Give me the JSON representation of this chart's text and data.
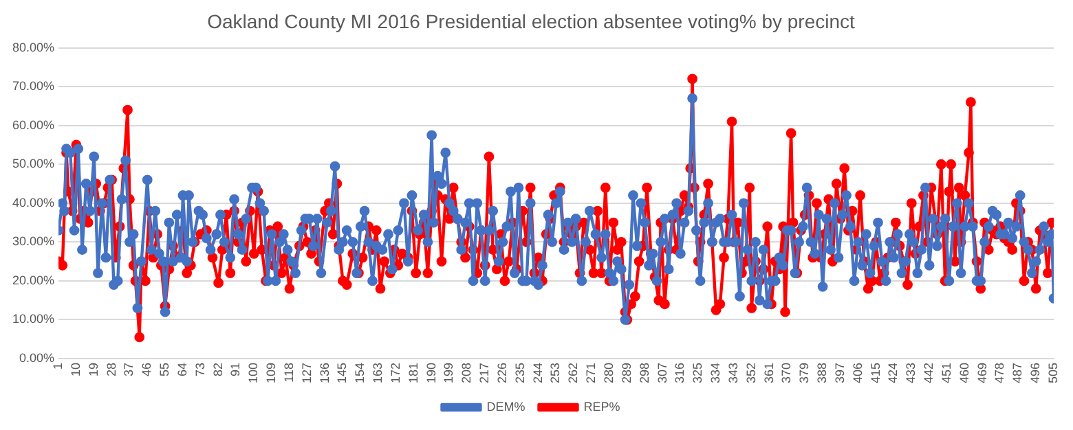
{
  "chart_data": {
    "type": "line",
    "title": "Oakland County MI 2016 Presidential election absentee voting% by precinct",
    "xlim": [
      1,
      505
    ],
    "xticks": [
      1,
      10,
      19,
      28,
      37,
      46,
      55,
      64,
      73,
      82,
      91,
      100,
      109,
      118,
      127,
      136,
      145,
      154,
      163,
      172,
      181,
      190,
      199,
      208,
      217,
      226,
      235,
      244,
      253,
      262,
      271,
      280,
      289,
      298,
      307,
      316,
      325,
      334,
      343,
      352,
      361,
      370,
      379,
      388,
      397,
      406,
      415,
      424,
      433,
      442,
      451,
      460,
      469,
      478,
      487,
      496,
      505
    ],
    "ylim": [
      0,
      80
    ],
    "yticks": [
      {
        "value": 0,
        "label": "0.00%"
      },
      {
        "value": 10,
        "label": "10.00%"
      },
      {
        "value": 20,
        "label": "20.00%"
      },
      {
        "value": 30,
        "label": "30.00%"
      },
      {
        "value": 40,
        "label": "40.00%"
      },
      {
        "value": 50,
        "label": "50.00%"
      },
      {
        "value": 60,
        "label": "60.00%"
      },
      {
        "value": 70,
        "label": "70.00%"
      },
      {
        "value": 80,
        "label": "80.00%"
      }
    ],
    "grid": "y",
    "legend": "bottom",
    "marker": "circle",
    "line_style": "solid",
    "series": [
      {
        "name": "DEM%",
        "color": "#4472c4",
        "x": [
          1,
          3,
          4,
          5,
          7,
          9,
          11,
          13,
          15,
          17,
          19,
          21,
          23,
          25,
          27,
          29,
          31,
          33,
          35,
          37,
          39,
          41,
          43,
          46,
          48,
          50,
          52,
          54,
          55,
          57,
          59,
          61,
          63,
          64,
          66,
          67,
          69,
          72,
          74,
          76,
          78,
          81,
          83,
          85,
          88,
          90,
          92,
          94,
          96,
          99,
          101,
          103,
          105,
          107,
          109,
          111,
          113,
          115,
          117,
          119,
          121,
          124,
          126,
          128,
          130,
          132,
          134,
          137,
          139,
          141,
          143,
          145,
          147,
          150,
          152,
          154,
          156,
          158,
          160,
          162,
          165,
          168,
          170,
          173,
          176,
          178,
          180,
          183,
          186,
          188,
          190,
          191,
          193,
          195,
          197,
          199,
          201,
          203,
          205,
          207,
          209,
          211,
          213,
          215,
          217,
          219,
          221,
          224,
          226,
          228,
          230,
          232,
          234,
          236,
          238,
          240,
          242,
          244,
          246,
          249,
          251,
          253,
          255,
          257,
          259,
          261,
          263,
          266,
          268,
          270,
          273,
          276,
          278,
          280,
          282,
          284,
          286,
          288,
          290,
          292,
          294,
          296,
          298,
          300,
          302,
          304,
          306,
          308,
          310,
          312,
          314,
          316,
          318,
          320,
          322,
          324,
          326,
          328,
          330,
          332,
          334,
          336,
          338,
          340,
          342,
          344,
          346,
          348,
          350,
          352,
          354,
          356,
          358,
          360,
          362,
          364,
          366,
          368,
          370,
          372,
          374,
          376,
          378,
          380,
          382,
          384,
          386,
          388,
          390,
          392,
          394,
          396,
          398,
          400,
          402,
          404,
          406,
          408,
          410,
          412,
          414,
          416,
          418,
          420,
          422,
          424,
          426,
          428,
          430,
          432,
          434,
          436,
          438,
          440,
          442,
          444,
          446,
          448,
          450,
          452,
          454,
          456,
          458,
          460,
          462,
          464,
          466,
          468,
          470,
          472,
          474,
          476,
          478,
          480,
          482,
          484,
          486,
          488,
          490,
          492,
          494,
          496,
          498,
          500,
          502,
          504,
          505
        ],
        "values": [
          33,
          40,
          38,
          54,
          53,
          33,
          54,
          28,
          45,
          38,
          52,
          22,
          40,
          26,
          46,
          19,
          20,
          41,
          51,
          30,
          32,
          13,
          25,
          46,
          28,
          38,
          27,
          25,
          12,
          35,
          25,
          37,
          26,
          42,
          25,
          42,
          30,
          38,
          37,
          31,
          28,
          32,
          37,
          30,
          26,
          41,
          32,
          28,
          36,
          44,
          44,
          40,
          38,
          20,
          32,
          20,
          30,
          32,
          28,
          25,
          22,
          33,
          36,
          36,
          29,
          36,
          22,
          35,
          38,
          49.5,
          28,
          30,
          33,
          30,
          22,
          34,
          38,
          30,
          20,
          29,
          28,
          32,
          23,
          33,
          40,
          25,
          42,
          33,
          37,
          30,
          57.5,
          35,
          47,
          45,
          53,
          40,
          38,
          36,
          28,
          35,
          40,
          20,
          40,
          33,
          20,
          33,
          38,
          25,
          30,
          34,
          43,
          22,
          44,
          20,
          20,
          40,
          20,
          19,
          24,
          37,
          30,
          40,
          43,
          28,
          35,
          30,
          36,
          20,
          30,
          38,
          32,
          26,
          32,
          22,
          20,
          25,
          23,
          10,
          19,
          42,
          29,
          40,
          35,
          24,
          27,
          20,
          30,
          36,
          23,
          37,
          40,
          27,
          35,
          38,
          67,
          33,
          20,
          35,
          40,
          30,
          35,
          36,
          30,
          30,
          37,
          30,
          16,
          40,
          28,
          20,
          30,
          15,
          28,
          14,
          20,
          20,
          26,
          24,
          33,
          33,
          22,
          30,
          34,
          44,
          30,
          27,
          37,
          18.5,
          36,
          28,
          40,
          26,
          37,
          42,
          34,
          20,
          30,
          24,
          32,
          22,
          29,
          35,
          25,
          20,
          30,
          26,
          32,
          22,
          25,
          32,
          30,
          22,
          28,
          44,
          24,
          36,
          29,
          34,
          36,
          20,
          34,
          40,
          22,
          34,
          40,
          34,
          20,
          20,
          30,
          34,
          38,
          37,
          32,
          32,
          35,
          31,
          34,
          42,
          30,
          28,
          22,
          25,
          28,
          34,
          30,
          32,
          15.5
        ]
      },
      {
        "name": "REP%",
        "color": "#ff0000",
        "x": [
          1,
          3,
          5,
          6,
          8,
          10,
          12,
          14,
          16,
          18,
          20,
          22,
          24,
          26,
          28,
          30,
          32,
          34,
          36,
          37,
          39,
          40,
          42,
          43,
          45,
          47,
          49,
          51,
          53,
          55,
          57,
          59,
          62,
          64,
          66,
          68,
          70,
          73,
          76,
          79,
          82,
          84,
          86,
          88,
          90,
          92,
          94,
          96,
          98,
          100,
          102,
          104,
          106,
          108,
          110,
          112,
          114,
          116,
          118,
          120,
          123,
          125,
          127,
          129,
          131,
          133,
          136,
          138,
          140,
          142,
          143,
          145,
          147,
          150,
          153,
          155,
          158,
          160,
          162,
          164,
          166,
          169,
          171,
          173,
          175,
          178,
          180,
          182,
          184,
          186,
          188,
          190,
          191,
          193,
          195,
          197,
          199,
          201,
          203,
          205,
          207,
          209,
          211,
          213,
          215,
          217,
          219,
          221,
          223,
          225,
          227,
          229,
          231,
          233,
          236,
          238,
          240,
          242,
          244,
          246,
          248,
          250,
          252,
          255,
          257,
          259,
          261,
          263,
          265,
          267,
          270,
          272,
          274,
          276,
          278,
          280,
          282,
          284,
          286,
          288,
          289,
          291,
          293,
          295,
          297,
          299,
          301,
          303,
          305,
          306,
          308,
          310,
          312,
          314,
          316,
          318,
          320,
          321,
          322,
          323,
          325,
          326,
          328,
          330,
          332,
          334,
          336,
          338,
          340,
          342,
          343,
          345,
          347,
          349,
          351,
          352,
          354,
          356,
          358,
          360,
          362,
          364,
          366,
          368,
          369,
          372,
          373,
          375,
          377,
          379,
          381,
          383,
          385,
          387,
          389,
          391,
          393,
          395,
          397,
          399,
          401,
          403,
          405,
          407,
          409,
          411,
          413,
          415,
          417,
          419,
          421,
          423,
          425,
          427,
          429,
          431,
          433,
          435,
          437,
          439,
          441,
          443,
          446,
          448,
          450,
          452,
          453,
          455,
          457,
          458,
          460,
          462,
          463,
          464,
          466,
          468,
          470,
          472,
          474,
          476,
          478,
          480,
          482,
          484,
          486,
          488,
          490,
          492,
          494,
          496,
          498,
          500,
          502,
          504,
          505
        ],
        "values": [
          25,
          24,
          53,
          43,
          38,
          55,
          36,
          38,
          35,
          43,
          45,
          38,
          40,
          44,
          46,
          26,
          34,
          49,
          64,
          41,
          24,
          20,
          5.5,
          25,
          20,
          38,
          26,
          32,
          24,
          13.5,
          23,
          29,
          26,
          33,
          22,
          24,
          30,
          32,
          33,
          26,
          19.5,
          28,
          37,
          22,
          38,
          30,
          35,
          25,
          38,
          27,
          43,
          28,
          20,
          33,
          24,
          34,
          22,
          26,
          18,
          24,
          29,
          34,
          30,
          27,
          33,
          25,
          38,
          40,
          32,
          45,
          29,
          20,
          19,
          27,
          22,
          26,
          34,
          28,
          33,
          18,
          25,
          22,
          28,
          24,
          27,
          26,
          38,
          22,
          32,
          35,
          22,
          38,
          45,
          42,
          25,
          41,
          36,
          44,
          36,
          30,
          26,
          34,
          28,
          22,
          33,
          24,
          52,
          28,
          23,
          32,
          20,
          25,
          35,
          23,
          38,
          30,
          44,
          22,
          26,
          20,
          32,
          36,
          42,
          44,
          30,
          34,
          32,
          34,
          22,
          35,
          28,
          22,
          38,
          22,
          44,
          20,
          35,
          28,
          30,
          12,
          10,
          14,
          16,
          25,
          29,
          44,
          27,
          21,
          15,
          35,
          14,
          28,
          36,
          28,
          38,
          42,
          39,
          49,
          72,
          44,
          25,
          30,
          37,
          45,
          30,
          12.5,
          14,
          26,
          36,
          61,
          30,
          35,
          22,
          25,
          44,
          13,
          25,
          20,
          23,
          34,
          14,
          25,
          23,
          34,
          12,
          58,
          35,
          22,
          33,
          37,
          42,
          26,
          40,
          26,
          32,
          41,
          25,
          45,
          36,
          49,
          33,
          38,
          28,
          42,
          25,
          18,
          20,
          30,
          20,
          22,
          26,
          30,
          35,
          29,
          25,
          19,
          40,
          27,
          34,
          42,
          30,
          44,
          32,
          50,
          20,
          43,
          50,
          25,
          44,
          30,
          42,
          53,
          66,
          35,
          25,
          18,
          35,
          28,
          33,
          32,
          34,
          31,
          30,
          28,
          40,
          38,
          20,
          30,
          28,
          18,
          33,
          32,
          22,
          35,
          35
        ]
      }
    ]
  }
}
